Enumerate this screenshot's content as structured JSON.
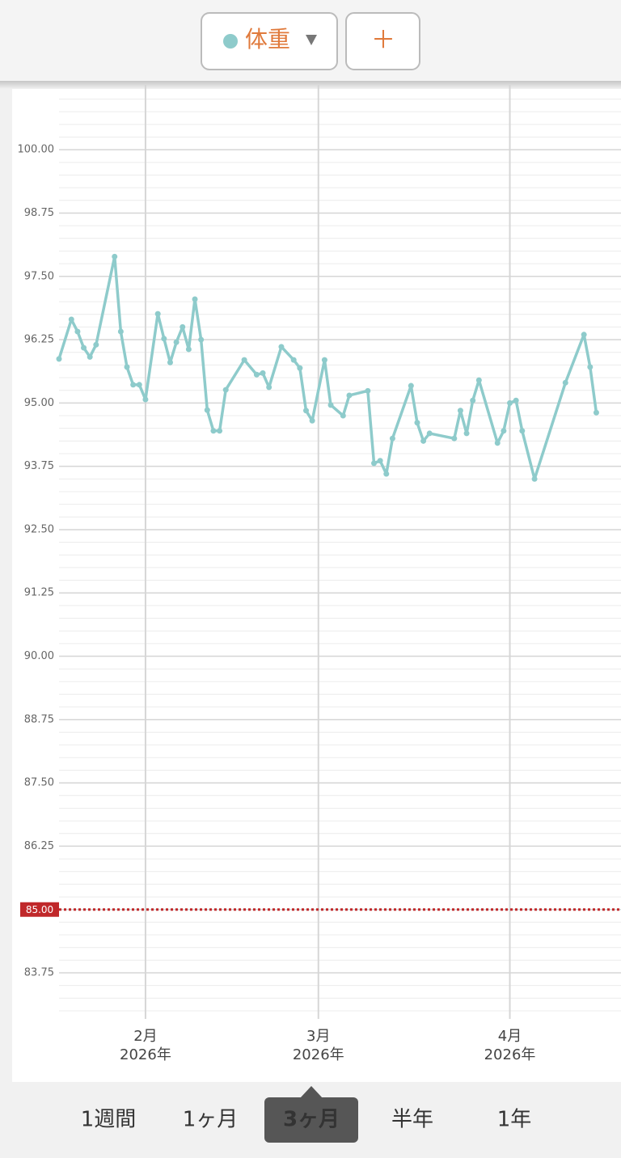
{
  "header": {
    "add_button": "＋"
  },
  "chart_data": {
    "type": "line",
    "x": [
      "2026-01-18",
      "2026-01-20",
      "2026-01-21",
      "2026-01-22",
      "2026-01-23",
      "2026-01-24",
      "2026-01-27",
      "2026-01-28",
      "2026-01-29",
      "2026-01-30",
      "2026-01-31",
      "2026-02-01",
      "2026-02-03",
      "2026-02-04",
      "2026-02-05",
      "2026-02-06",
      "2026-02-07",
      "2026-02-08",
      "2026-02-09",
      "2026-02-10",
      "2026-02-11",
      "2026-02-12",
      "2026-02-13",
      "2026-02-14",
      "2026-02-17",
      "2026-02-19",
      "2026-02-20",
      "2026-02-21",
      "2026-02-23",
      "2026-02-25",
      "2026-02-26",
      "2026-02-27",
      "2026-02-28",
      "2026-03-02",
      "2026-03-03",
      "2026-03-05",
      "2026-03-06",
      "2026-03-09",
      "2026-03-10",
      "2026-03-11",
      "2026-03-12",
      "2026-03-13",
      "2026-03-16",
      "2026-03-17",
      "2026-03-18",
      "2026-03-19",
      "2026-03-23",
      "2026-03-24",
      "2026-03-25",
      "2026-03-26",
      "2026-03-27",
      "2026-03-30",
      "2026-03-31",
      "2026-04-01",
      "2026-04-02",
      "2026-04-03",
      "2026-04-05",
      "2026-04-10",
      "2026-04-13",
      "2026-04-14",
      "2026-04-15"
    ],
    "series": [
      {
        "name": "体重",
        "color": "#8ecbcb",
        "values": [
          95.87,
          96.65,
          96.41,
          96.09,
          95.91,
          96.15,
          97.89,
          96.41,
          95.71,
          95.36,
          95.36,
          95.07,
          96.76,
          96.27,
          95.8,
          96.2,
          96.5,
          96.06,
          97.05,
          96.25,
          94.86,
          94.45,
          94.45,
          95.26,
          95.85,
          95.56,
          95.59,
          95.31,
          96.11,
          95.85,
          95.69,
          94.85,
          94.65,
          95.85,
          94.96,
          94.75,
          95.15,
          95.24,
          93.81,
          93.86,
          93.6,
          94.3,
          95.34,
          94.61,
          94.25,
          94.4,
          94.3,
          94.85,
          94.4,
          95.05,
          95.45,
          94.21,
          94.45,
          95.0,
          95.05,
          94.45,
          93.5,
          95.4,
          96.35,
          95.71,
          94.81
        ]
      }
    ],
    "xlim": [
      "2026-01-18",
      "2026-04-19"
    ],
    "xticks": [
      {
        "value": "2026-02-01",
        "label": "2月",
        "sublabel": "2026年"
      },
      {
        "value": "2026-03-01",
        "label": "3月",
        "sublabel": "2026年"
      },
      {
        "value": "2026-04-01",
        "label": "4月",
        "sublabel": "2026年"
      }
    ],
    "ylim": [
      83.0,
      101.2
    ],
    "yticks": [
      {
        "value": 83.75,
        "label": "83.75"
      },
      {
        "value": 85,
        "label": "85.00"
      },
      {
        "value": 86.25,
        "label": "86.25"
      },
      {
        "value": 87.5,
        "label": "87.50"
      },
      {
        "value": 88.75,
        "label": "88.75"
      },
      {
        "value": 90,
        "label": "90.00"
      },
      {
        "value": 91.25,
        "label": "91.25"
      },
      {
        "value": 92.5,
        "label": "92.50"
      },
      {
        "value": 93.75,
        "label": "93.75"
      },
      {
        "value": 95,
        "label": "95.00"
      },
      {
        "value": 96.25,
        "label": "96.25"
      },
      {
        "value": 97.5,
        "label": "97.50"
      },
      {
        "value": 98.75,
        "label": "98.75"
      },
      {
        "value": 100,
        "label": "100.00"
      }
    ],
    "minor_grid_step": 0.25,
    "grid": true,
    "target": {
      "value": 85,
      "label": "85.00",
      "color": "#c0282a"
    }
  },
  "period_tabs": {
    "items": [
      "1週間",
      "1ヶ月",
      "3ヶ月",
      "半年",
      "1年"
    ],
    "selected": 2
  }
}
